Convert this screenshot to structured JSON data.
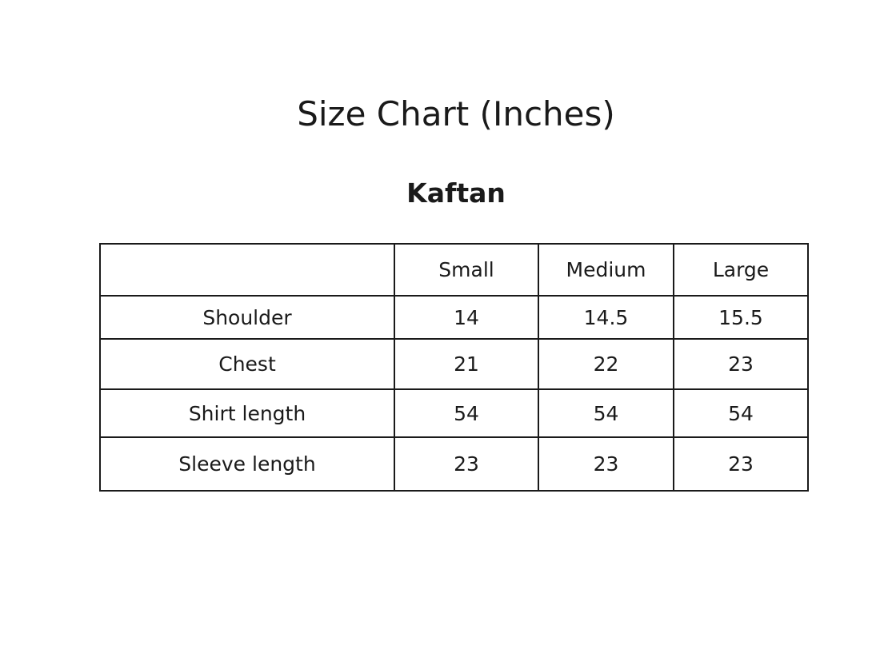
{
  "title": "Size Chart (Inches)",
  "subtitle": "Kaftan",
  "table": {
    "columns": [
      "",
      "Small",
      "Medium",
      "Large"
    ],
    "rows": [
      {
        "label": "Shoulder",
        "values": [
          "14",
          "14.5",
          "15.5"
        ]
      },
      {
        "label": "Chest",
        "values": [
          "21",
          "22",
          "23"
        ]
      },
      {
        "label": "Shirt length",
        "values": [
          "54",
          "54",
          "54"
        ]
      },
      {
        "label": "Sleeve length",
        "values": [
          "23",
          "23",
          "23"
        ]
      }
    ]
  }
}
